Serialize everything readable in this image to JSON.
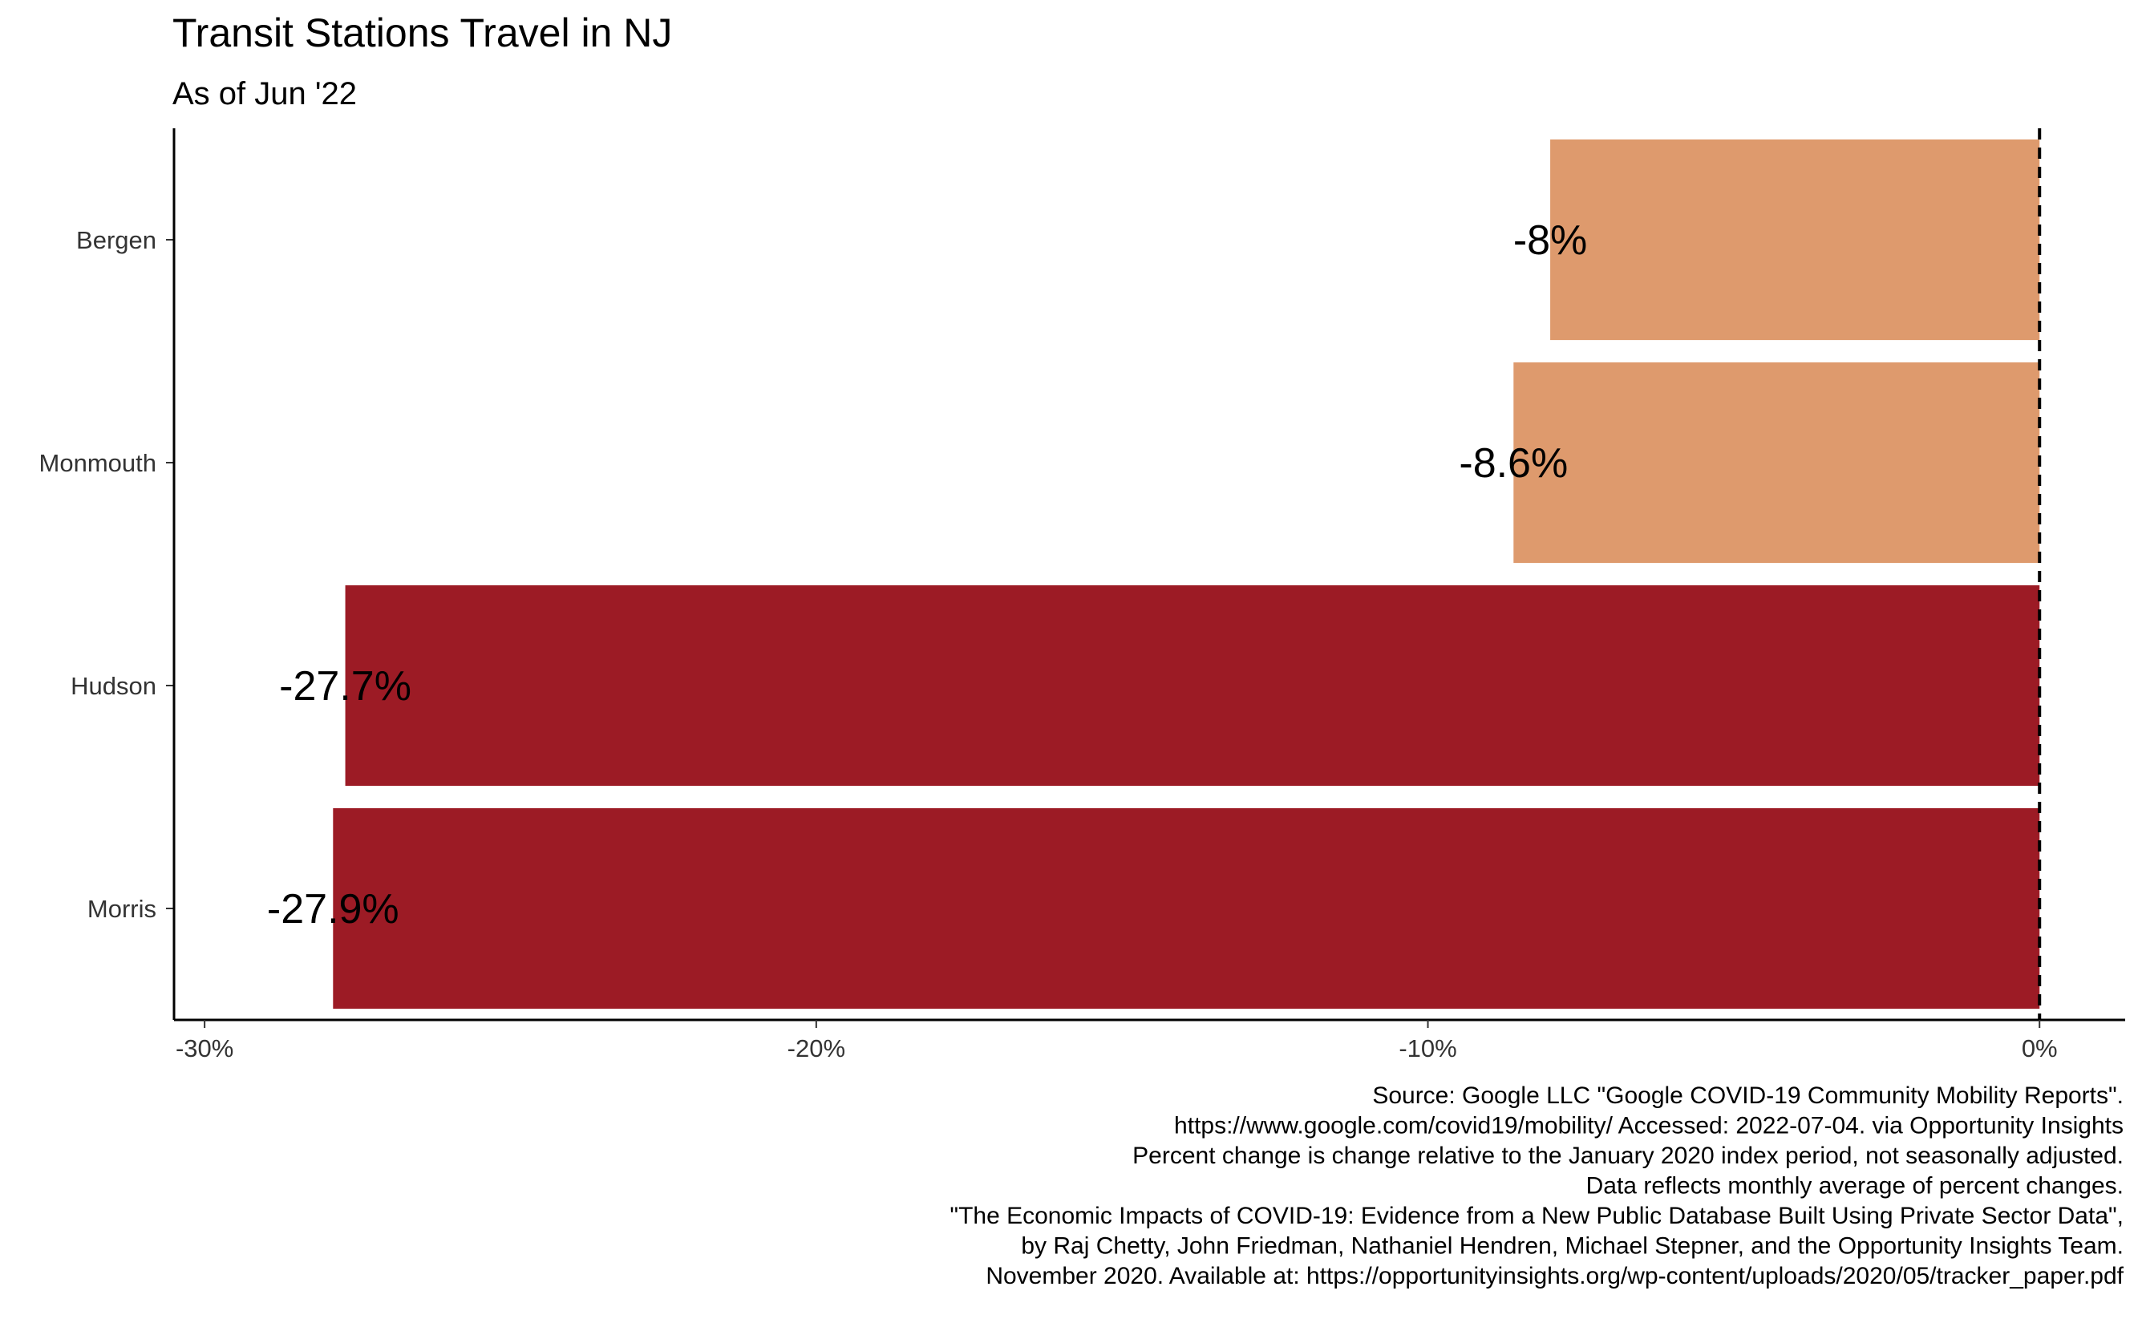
{
  "chart_data": {
    "type": "bar",
    "orientation": "horizontal",
    "title": "Transit Stations Travel in NJ",
    "subtitle": "As of Jun '22",
    "xlabel": "",
    "ylabel": "",
    "categories": [
      "Bergen",
      "Monmouth",
      "Hudson",
      "Morris"
    ],
    "values": [
      -8.0,
      -8.6,
      -27.7,
      -27.9
    ],
    "data_labels": [
      "-8%",
      "-8.6%",
      "-27.7%",
      "-27.9%"
    ],
    "bar_colors": [
      "#DE9A6D",
      "#DE9A6D",
      "#9C1B25",
      "#9C1B25"
    ],
    "xlim": [
      -30.5,
      1.4
    ],
    "x_ticks": [
      -30,
      -20,
      -10,
      0
    ],
    "x_tick_labels": [
      "-30%",
      "-20%",
      "-10%",
      "0%"
    ],
    "reference_line": {
      "x": 0,
      "style": "dashed",
      "color": "#000000"
    },
    "grid": false,
    "legend": "none",
    "caption": [
      "Source: Google LLC \"Google COVID-19 Community Mobility Reports\".",
      "https://www.google.com/covid19/mobility/ Accessed: 2022-07-04. via Opportunity Insights",
      "Percent change is change relative to the January 2020 index period, not seasonally adjusted.",
      "Data reflects monthly average of percent changes.",
      "\"The Economic Impacts of COVID-19: Evidence from a New Public Database Built Using Private Sector Data\",",
      "by Raj Chetty, John Friedman, Nathaniel Hendren, Michael Stepner, and the Opportunity Insights Team.",
      "November 2020. Available at: https://opportunityinsights.org/wp-content/uploads/2020/05/tracker_paper.pdf"
    ]
  }
}
